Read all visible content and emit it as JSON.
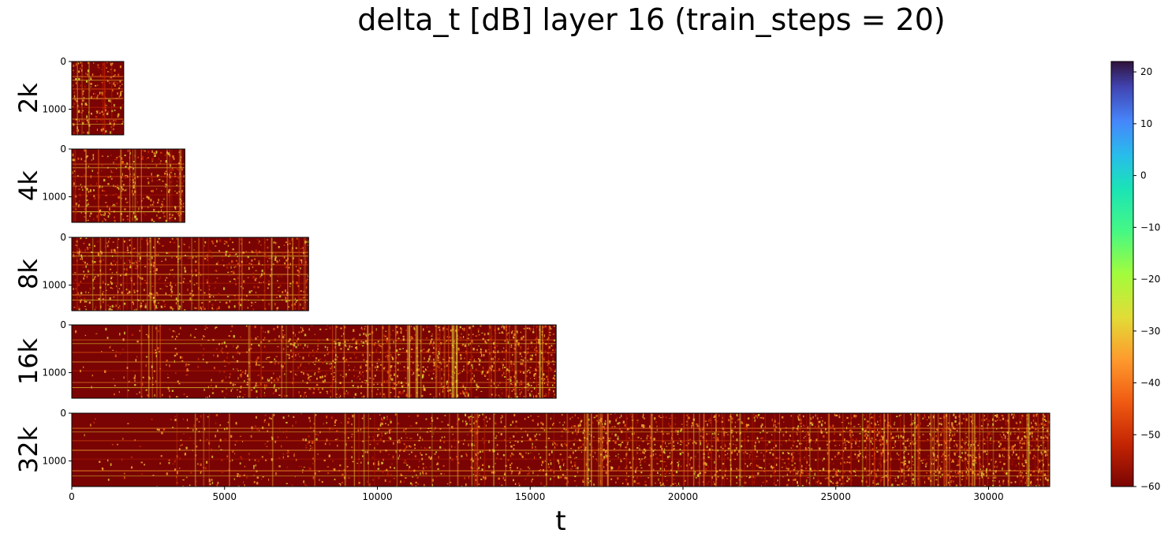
{
  "chart_data": {
    "type": "heatmap",
    "title": "delta_t [dB] layer 16 (train_steps = 20)",
    "xlabel": "t",
    "x_ticks": [
      0,
      5000,
      10000,
      15000,
      20000,
      25000,
      30000
    ],
    "y_ticks": [
      0,
      1000
    ],
    "xlim": [
      0,
      32000
    ],
    "ylim": [
      0,
      1536
    ],
    "colormap": "turbo_r",
    "colorbar": {
      "range": [
        -60,
        22
      ],
      "ticks": [
        20,
        10,
        0,
        -10,
        -20,
        -30,
        -40,
        -50,
        -60
      ]
    },
    "panels": [
      {
        "label": "2k",
        "length": 1700
      },
      {
        "label": "4k",
        "length": 3700
      },
      {
        "label": "8k",
        "length": 7750
      },
      {
        "label": "16k",
        "length": 15850
      },
      {
        "label": "32k",
        "length": 32000
      }
    ]
  }
}
